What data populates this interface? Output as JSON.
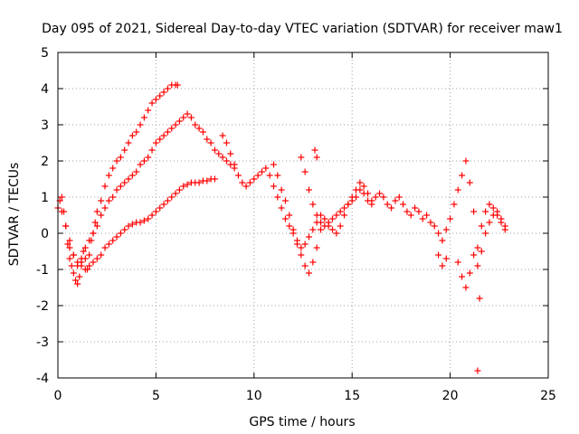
{
  "chart_data": {
    "type": "scatter",
    "title": "Day 095 of 2021, Sidereal Day-to-day VTEC variation (SDTVAR) for receiver maw1",
    "xlabel": "GPS time / hours",
    "ylabel": "SDTVAR / TECUs",
    "xlim": [
      0,
      25
    ],
    "ylim": [
      -4,
      5
    ],
    "xticks": [
      0,
      5,
      10,
      15,
      20,
      25
    ],
    "yticks": [
      -4,
      -3,
      -2,
      -1,
      0,
      1,
      2,
      3,
      4,
      5
    ],
    "grid": true,
    "marker": "+",
    "color": "#ff0000",
    "series": [
      {
        "name": "maw1",
        "x": [
          0.0,
          0.1,
          0.2,
          0.3,
          0.4,
          0.5,
          0.6,
          0.7,
          0.8,
          0.9,
          1.0,
          1.1,
          1.2,
          1.3,
          1.4,
          1.5,
          1.6,
          1.7,
          1.8,
          1.9,
          2.0,
          2.2,
          2.4,
          2.6,
          2.8,
          3.0,
          3.2,
          3.4,
          3.6,
          3.8,
          4.0,
          4.2,
          4.4,
          4.6,
          4.8,
          5.0,
          5.2,
          5.4,
          5.6,
          5.8,
          6.0,
          6.1,
          0.2,
          0.4,
          0.6,
          0.8,
          1.0,
          1.2,
          1.4,
          1.6,
          1.8,
          2.0,
          2.2,
          2.4,
          2.6,
          2.8,
          3.0,
          3.2,
          3.4,
          3.6,
          3.8,
          4.0,
          4.2,
          4.4,
          4.6,
          4.8,
          5.0,
          5.2,
          5.4,
          5.6,
          5.8,
          6.0,
          6.2,
          6.4,
          6.6,
          6.8,
          7.0,
          7.2,
          7.4,
          7.6,
          7.8,
          8.0,
          8.2,
          8.4,
          8.6,
          8.8,
          9.0,
          0.6,
          0.8,
          1.0,
          1.2,
          1.4,
          1.6,
          1.8,
          2.0,
          2.2,
          2.4,
          2.6,
          2.8,
          3.0,
          3.2,
          3.4,
          3.6,
          3.8,
          4.0,
          4.2,
          4.4,
          4.6,
          4.8,
          5.0,
          5.2,
          5.4,
          5.6,
          5.8,
          6.0,
          6.2,
          6.4,
          6.6,
          6.8,
          7.0,
          7.2,
          7.4,
          7.6,
          7.8,
          8.0,
          8.4,
          8.6,
          8.8,
          9.0,
          9.2,
          9.4,
          9.6,
          9.8,
          10.0,
          10.2,
          10.4,
          10.6,
          10.8,
          11.0,
          11.2,
          11.4,
          11.6,
          11.8,
          12.0,
          12.2,
          12.4,
          12.6,
          12.8,
          13.0,
          13.2,
          13.4,
          13.6,
          13.8,
          14.0,
          14.2,
          14.4,
          14.6,
          14.8,
          15.0,
          15.2,
          15.4,
          15.6,
          15.8,
          16.0,
          16.2,
          16.4,
          16.6,
          16.8,
          17.0,
          17.2,
          17.4,
          17.6,
          17.8,
          18.0,
          18.2,
          18.4,
          18.6,
          18.8,
          19.0,
          19.2,
          19.4,
          19.6,
          19.8,
          20.0,
          20.2,
          20.4,
          20.6,
          20.8,
          21.0,
          21.2,
          21.4,
          21.6,
          21.8,
          22.0,
          22.2,
          22.4,
          22.6,
          22.8,
          11.0,
          11.2,
          11.4,
          11.6,
          11.8,
          12.0,
          12.2,
          12.4,
          12.6,
          12.8,
          13.0,
          13.2,
          13.4,
          12.4,
          12.6,
          12.8,
          13.0,
          13.2,
          13.4,
          13.6,
          13.8,
          14.0,
          14.2,
          14.4,
          14.6,
          14.8,
          15.0,
          15.2,
          15.4,
          15.6,
          15.8,
          16.0,
          19.4,
          19.6,
          19.8,
          20.4,
          20.6,
          20.8,
          21.0,
          21.2,
          21.4,
          21.5,
          21.6,
          21.8,
          22.0,
          22.2,
          22.4,
          22.6,
          22.8,
          13.1,
          13.2,
          21.4
        ],
        "y": [
          0.7,
          0.9,
          1.0,
          0.6,
          0.2,
          -0.3,
          -0.7,
          -0.9,
          -1.1,
          -1.3,
          -1.4,
          -1.2,
          -0.8,
          -0.5,
          -0.7,
          -1.0,
          -0.6,
          -0.2,
          0.0,
          0.3,
          0.6,
          0.9,
          1.3,
          1.6,
          1.8,
          2.0,
          2.1,
          2.3,
          2.5,
          2.7,
          2.8,
          3.0,
          3.2,
          3.4,
          3.6,
          3.7,
          3.8,
          3.9,
          4.0,
          4.1,
          4.1,
          4.1,
          0.6,
          0.2,
          -0.2,
          -0.6,
          -0.9,
          -0.7,
          -0.4,
          -0.2,
          0.0,
          0.2,
          0.5,
          0.7,
          0.9,
          1.0,
          1.2,
          1.3,
          1.4,
          1.5,
          1.6,
          1.7,
          1.9,
          2.0,
          2.1,
          2.3,
          2.5,
          2.6,
          2.7,
          2.8,
          2.9,
          3.0,
          3.1,
          3.2,
          3.3,
          3.2,
          3.0,
          2.9,
          2.8,
          2.6,
          2.5,
          2.3,
          2.2,
          2.1,
          2.0,
          1.9,
          1.8,
          -0.4,
          -0.6,
          -0.8,
          -0.9,
          -1.0,
          -0.9,
          -0.8,
          -0.7,
          -0.6,
          -0.4,
          -0.3,
          -0.2,
          -0.1,
          0.0,
          0.1,
          0.2,
          0.25,
          0.3,
          0.3,
          0.35,
          0.4,
          0.5,
          0.6,
          0.7,
          0.8,
          0.9,
          1.0,
          1.1,
          1.2,
          1.3,
          1.35,
          1.4,
          1.4,
          1.4,
          1.45,
          1.45,
          1.5,
          1.5,
          2.7,
          2.5,
          2.2,
          1.9,
          1.6,
          1.4,
          1.3,
          1.4,
          1.5,
          1.6,
          1.7,
          1.8,
          1.6,
          1.3,
          1.0,
          0.7,
          0.4,
          0.2,
          0.0,
          -0.2,
          -0.4,
          -0.3,
          -0.1,
          0.1,
          0.3,
          0.5,
          0.4,
          0.2,
          0.1,
          0.0,
          0.2,
          0.5,
          0.8,
          1.0,
          1.2,
          1.4,
          1.3,
          1.1,
          0.9,
          1.0,
          1.1,
          1.0,
          0.8,
          0.7,
          0.9,
          1.0,
          0.8,
          0.6,
          0.5,
          0.7,
          0.6,
          0.4,
          0.5,
          0.3,
          0.2,
          0.0,
          -0.2,
          0.1,
          0.4,
          0.8,
          1.2,
          1.6,
          2.0,
          1.4,
          0.6,
          -0.4,
          0.2,
          0.6,
          0.8,
          0.7,
          0.5,
          0.3,
          0.2,
          1.9,
          1.6,
          1.2,
          0.9,
          0.5,
          0.1,
          -0.3,
          -0.6,
          -0.9,
          -1.1,
          -0.8,
          -0.4,
          0.1,
          2.1,
          1.7,
          1.2,
          0.8,
          0.5,
          0.3,
          0.2,
          0.3,
          0.4,
          0.5,
          0.6,
          0.7,
          0.8,
          0.9,
          1.0,
          1.2,
          1.1,
          0.9,
          0.8,
          -0.6,
          -0.9,
          -0.7,
          -0.8,
          -1.2,
          -1.5,
          -1.1,
          -0.6,
          -0.9,
          -1.8,
          -0.5,
          0.0,
          0.3,
          0.5,
          0.6,
          0.4,
          0.1,
          2.3,
          2.1,
          -3.8
        ]
      }
    ]
  }
}
